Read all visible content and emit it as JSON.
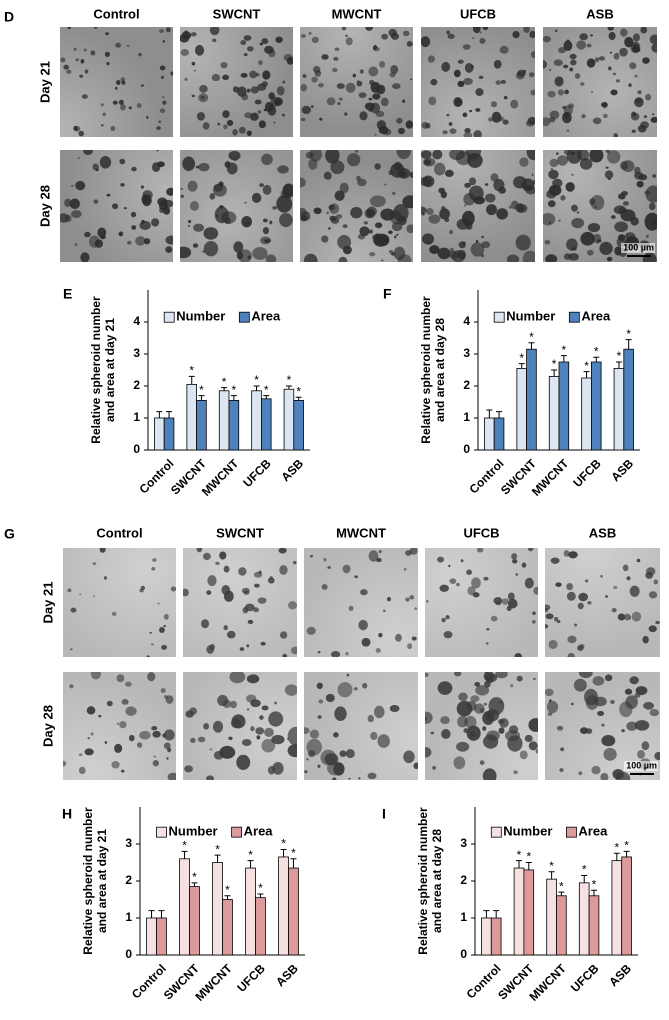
{
  "figure": {
    "panels": [
      {
        "letter": "D",
        "columns": [
          "Control",
          "SWCNT",
          "MWCNT",
          "UFCB",
          "ASB"
        ],
        "rows": [
          "Day 21",
          "Day 28"
        ],
        "scale_bar": "100 µm"
      },
      {
        "letter": "G",
        "columns": [
          "Control",
          "SWCNT",
          "MWCNT",
          "UFCB",
          "ASB"
        ],
        "rows": [
          "Day 21",
          "Day 28"
        ],
        "scale_bar": "100 µm"
      }
    ]
  },
  "chart_data": [
    {
      "type": "bar",
      "panel": "E",
      "ylabel": [
        "Relative spheroid number",
        "and area at day 21"
      ],
      "categories": [
        "Control",
        "SWCNT",
        "MWCNT",
        "UFCB",
        "ASB"
      ],
      "series": [
        {
          "name": "Number",
          "color": "#dce6f2",
          "values": [
            1.0,
            2.05,
            1.85,
            1.85,
            1.9
          ],
          "errors": [
            0.2,
            0.25,
            0.1,
            0.15,
            0.1
          ],
          "star": "*",
          "significant": [
            false,
            true,
            true,
            true,
            true
          ]
        },
        {
          "name": "Area",
          "color": "#4f81bd",
          "values": [
            1.0,
            1.55,
            1.55,
            1.6,
            1.55
          ],
          "errors": [
            0.2,
            0.15,
            0.15,
            0.1,
            0.1
          ],
          "star": "*",
          "significant": [
            false,
            true,
            true,
            true,
            true
          ]
        }
      ],
      "ylim": [
        0,
        5
      ],
      "yticks": [
        0,
        1,
        2,
        3,
        4
      ],
      "legend": "top"
    },
    {
      "type": "bar",
      "panel": "F",
      "ylabel": [
        "Relative spheroid number",
        "and area at day 28"
      ],
      "categories": [
        "Control",
        "SWCNT",
        "MWCNT",
        "UFCB",
        "ASB"
      ],
      "series": [
        {
          "name": "Number",
          "color": "#dce6f2",
          "values": [
            1.0,
            2.55,
            2.3,
            2.25,
            2.55
          ],
          "errors": [
            0.25,
            0.15,
            0.2,
            0.2,
            0.2
          ],
          "star": "*",
          "significant": [
            false,
            true,
            true,
            true,
            true
          ]
        },
        {
          "name": "Area",
          "color": "#4f81bd",
          "values": [
            1.0,
            3.15,
            2.75,
            2.75,
            3.15
          ],
          "errors": [
            0.2,
            0.2,
            0.2,
            0.15,
            0.3
          ],
          "star": "*",
          "significant": [
            false,
            true,
            true,
            true,
            true
          ]
        }
      ],
      "ylim": [
        0,
        5
      ],
      "yticks": [
        0,
        1,
        2,
        3,
        4
      ],
      "legend": "top"
    },
    {
      "type": "bar",
      "panel": "H",
      "ylabel": [
        "Relative spheroid number",
        "and area at day 21"
      ],
      "categories": [
        "Control",
        "SWCNT",
        "MWCNT",
        "UFCB",
        "ASB"
      ],
      "series": [
        {
          "name": "Number",
          "color": "#f5e1e1",
          "values": [
            1.0,
            2.6,
            2.5,
            2.35,
            2.65
          ],
          "errors": [
            0.2,
            0.2,
            0.2,
            0.2,
            0.2
          ],
          "star": "*",
          "significant": [
            false,
            true,
            true,
            true,
            true
          ]
        },
        {
          "name": "Area",
          "color": "#dd9a9a",
          "values": [
            1.0,
            1.85,
            1.5,
            1.55,
            2.35
          ],
          "errors": [
            0.2,
            0.1,
            0.1,
            0.1,
            0.25
          ],
          "star": "*",
          "significant": [
            false,
            true,
            true,
            true,
            true
          ]
        }
      ],
      "ylim": [
        0,
        4
      ],
      "yticks": [
        0,
        1,
        2,
        3
      ],
      "legend": "top"
    },
    {
      "type": "bar",
      "panel": "I",
      "ylabel": [
        "Relative spheroid number",
        "and area at day 28"
      ],
      "categories": [
        "Control",
        "SWCNT",
        "MWCNT",
        "UFCB",
        "ASB"
      ],
      "series": [
        {
          "name": "Number",
          "color": "#f5e1e1",
          "values": [
            1.0,
            2.35,
            2.05,
            1.95,
            2.55
          ],
          "errors": [
            0.2,
            0.2,
            0.2,
            0.2,
            0.2
          ],
          "star": "*",
          "significant": [
            false,
            true,
            true,
            true,
            true
          ]
        },
        {
          "name": "Area",
          "color": "#dd9a9a",
          "values": [
            1.0,
            2.3,
            1.6,
            1.6,
            2.65
          ],
          "errors": [
            0.2,
            0.2,
            0.1,
            0.15,
            0.15
          ],
          "star": "*",
          "significant": [
            false,
            true,
            true,
            true,
            true
          ]
        }
      ],
      "ylim": [
        0,
        4
      ],
      "yticks": [
        0,
        1,
        2,
        3
      ],
      "legend": "top"
    }
  ]
}
